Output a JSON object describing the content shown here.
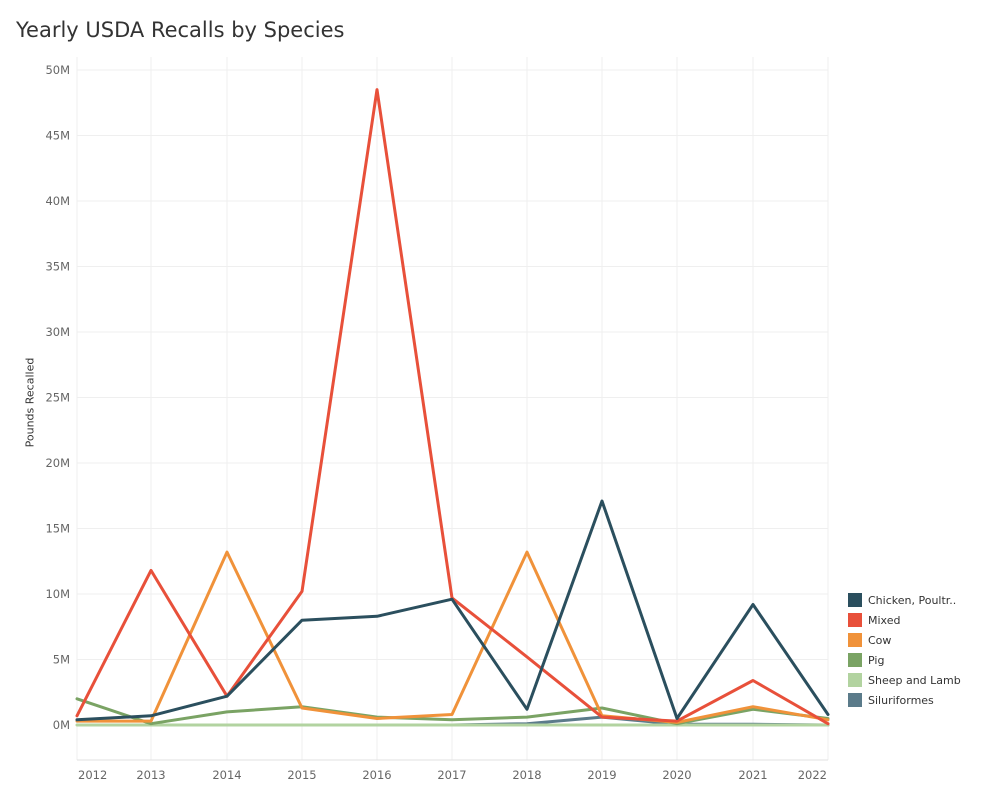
{
  "chart_data": {
    "type": "line",
    "title": "Yearly USDA Recalls by Species",
    "ylabel": "Pounds Recalled",
    "xlabel": "",
    "x": [
      "2012",
      "2013",
      "2014",
      "2015",
      "2016",
      "2017",
      "2018",
      "2019",
      "2020",
      "2021",
      "2022"
    ],
    "y_ticks": [
      "0M",
      "5M",
      "10M",
      "15M",
      "20M",
      "25M",
      "30M",
      "35M",
      "40M",
      "45M",
      "50M"
    ],
    "ylim": [
      0,
      50
    ],
    "grid": true,
    "legend_position": "right",
    "series": [
      {
        "name": "Chicken, Poultr..",
        "color": "#2b4f5e",
        "values": [
          0.4,
          0.7,
          2.2,
          8.0,
          8.3,
          9.6,
          1.2,
          17.1,
          0.5,
          9.2,
          0.8
        ]
      },
      {
        "name": "Mixed",
        "color": "#e8503a",
        "values": [
          0.7,
          11.8,
          2.2,
          10.2,
          48.5,
          9.7,
          5.2,
          0.6,
          0.3,
          3.4,
          0.1
        ]
      },
      {
        "name": "Cow",
        "color": "#f0923a",
        "values": [
          0.3,
          0.3,
          13.2,
          1.3,
          0.5,
          0.8,
          13.2,
          0.7,
          0.2,
          1.4,
          0.4
        ]
      },
      {
        "name": "Pig",
        "color": "#7aa364",
        "values": [
          2.0,
          0.1,
          1.0,
          1.4,
          0.6,
          0.4,
          0.6,
          1.3,
          0.1,
          1.2,
          0.5
        ]
      },
      {
        "name": "Sheep and Lamb",
        "color": "#b2d3a0",
        "values": [
          0.0,
          0.0,
          0.0,
          0.0,
          0.0,
          0.0,
          0.0,
          0.0,
          0.0,
          0.0,
          0.0
        ]
      },
      {
        "name": "Siluriformes",
        "color": "#5b7b8a",
        "values": [
          null,
          null,
          null,
          null,
          0.0,
          0.0,
          0.1,
          0.6,
          0.05,
          0.05,
          0.0
        ]
      }
    ]
  }
}
